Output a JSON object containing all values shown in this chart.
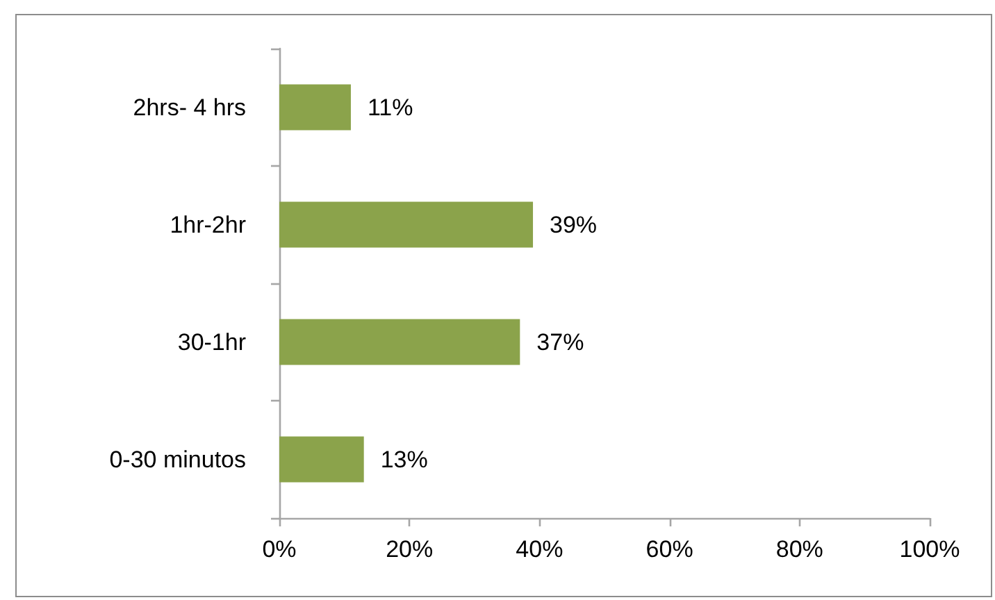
{
  "chart_data": {
    "type": "bar",
    "orientation": "horizontal",
    "categories": [
      "2hrs- 4 hrs",
      "1hr-2hr",
      "30-1hr",
      "0-30 minutos"
    ],
    "values": [
      11,
      39,
      37,
      13
    ],
    "color": "#8ba34b",
    "value_labels": [
      "11%",
      "39%",
      "37%",
      "13%"
    ],
    "xlim": [
      0,
      100
    ],
    "xticks": [
      {
        "value": 0,
        "label": "0%"
      },
      {
        "value": 20,
        "label": "20%"
      },
      {
        "value": 40,
        "label": "40%"
      },
      {
        "value": 60,
        "label": "60%"
      },
      {
        "value": 80,
        "label": "80%"
      },
      {
        "value": 100,
        "label": "100%"
      }
    ],
    "grid": false
  }
}
